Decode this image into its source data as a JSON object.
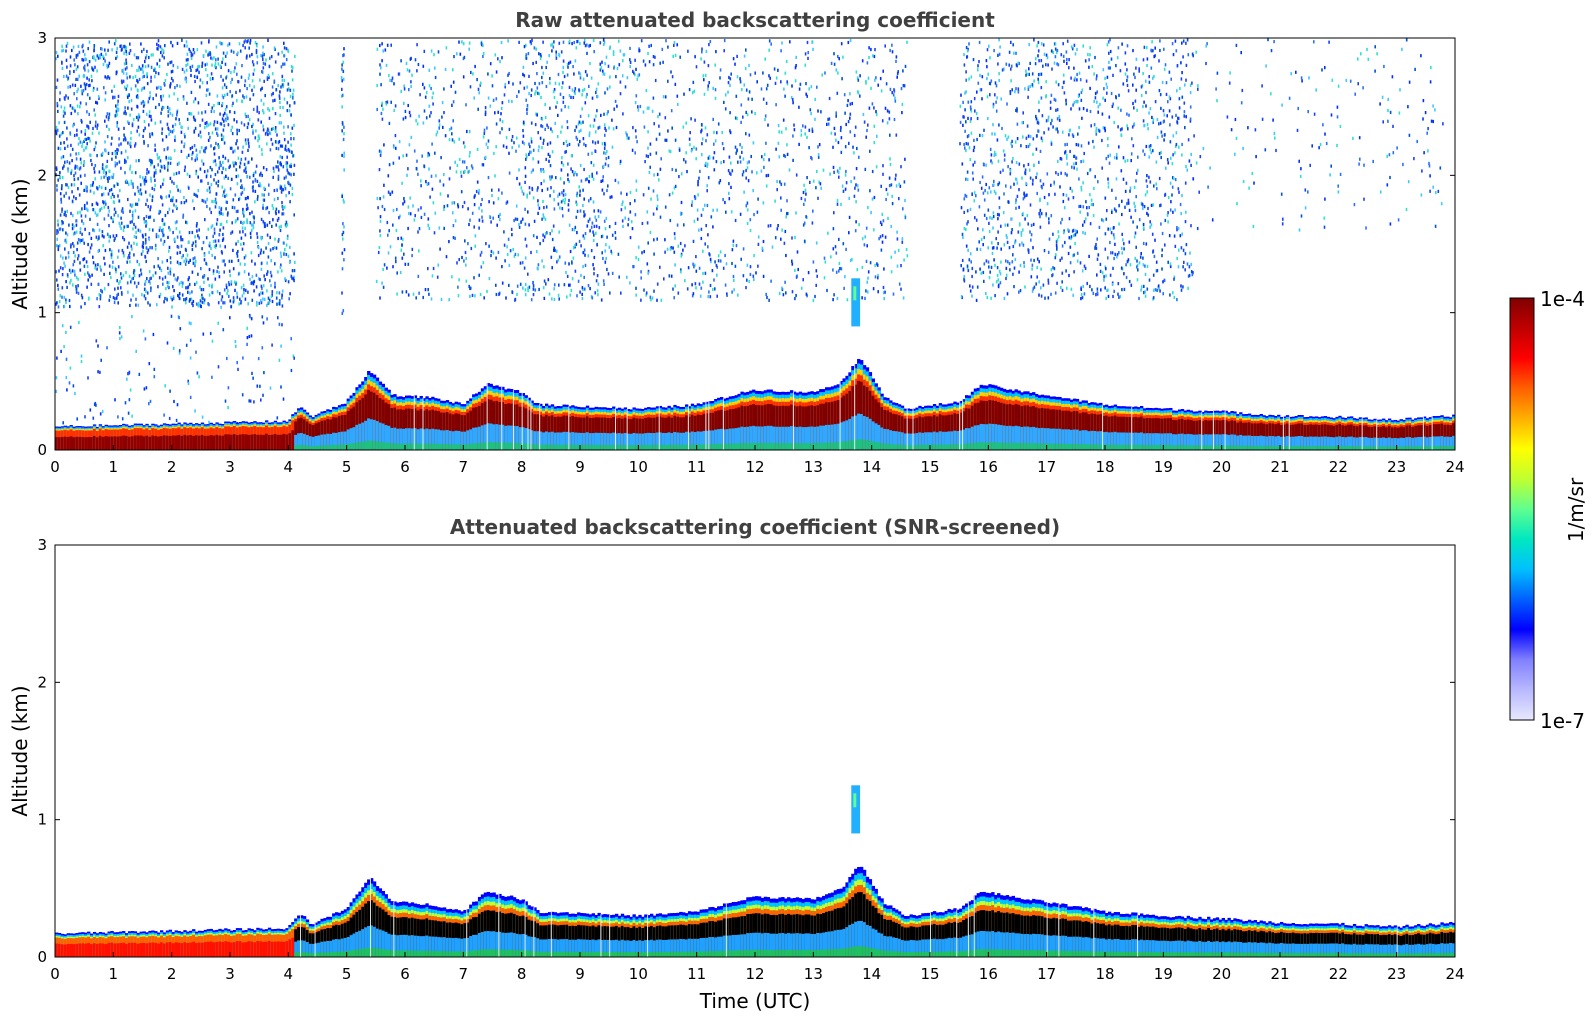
{
  "chart_data": [
    {
      "type": "heatmap",
      "title": "Raw attenuated backscattering coefficient",
      "xlabel": "",
      "ylabel": "Altitude (km)",
      "xlim": [
        0,
        24
      ],
      "ylim": [
        0,
        3
      ],
      "x_ticks": [
        "0",
        "1",
        "2",
        "3",
        "4",
        "5",
        "6",
        "7",
        "8",
        "9",
        "10",
        "11",
        "12",
        "13",
        "14",
        "15",
        "16",
        "17",
        "18",
        "19",
        "20",
        "21",
        "22",
        "23",
        "24"
      ],
      "y_ticks": [
        "0",
        "1",
        "2",
        "3"
      ],
      "screened": false,
      "boundary_layer_top_km": [
        [
          0,
          0.17
        ],
        [
          1,
          0.18
        ],
        [
          2,
          0.19
        ],
        [
          3,
          0.2
        ],
        [
          4,
          0.21
        ],
        [
          4.2,
          0.32
        ],
        [
          4.4,
          0.24
        ],
        [
          5,
          0.35
        ],
        [
          5.4,
          0.58
        ],
        [
          5.8,
          0.4
        ],
        [
          6.5,
          0.38
        ],
        [
          7,
          0.33
        ],
        [
          7.4,
          0.48
        ],
        [
          8,
          0.42
        ],
        [
          8.3,
          0.33
        ],
        [
          9,
          0.32
        ],
        [
          10,
          0.3
        ],
        [
          11,
          0.33
        ],
        [
          12,
          0.44
        ],
        [
          13,
          0.42
        ],
        [
          13.5,
          0.5
        ],
        [
          13.8,
          0.68
        ],
        [
          14.2,
          0.4
        ],
        [
          14.6,
          0.3
        ],
        [
          15.5,
          0.35
        ],
        [
          15.9,
          0.48
        ],
        [
          16.5,
          0.43
        ],
        [
          17,
          0.4
        ],
        [
          18,
          0.33
        ],
        [
          19,
          0.3
        ],
        [
          20,
          0.28
        ],
        [
          21,
          0.25
        ],
        [
          22,
          0.24
        ],
        [
          23,
          0.22
        ],
        [
          24,
          0.25
        ]
      ],
      "elevated_feature": {
        "time_utc": [
          13.65,
          13.8
        ],
        "altitude_km": [
          0.9,
          1.25
        ]
      }
    },
    {
      "type": "heatmap",
      "title": "Attenuated backscattering coefficient (SNR-screened)",
      "xlabel": "Time (UTC)",
      "ylabel": "Altitude (km)",
      "xlim": [
        0,
        24
      ],
      "ylim": [
        0,
        3
      ],
      "x_ticks": [
        "0",
        "1",
        "2",
        "3",
        "4",
        "5",
        "6",
        "7",
        "8",
        "9",
        "10",
        "11",
        "12",
        "13",
        "14",
        "15",
        "16",
        "17",
        "18",
        "19",
        "20",
        "21",
        "22",
        "23",
        "24"
      ],
      "y_ticks": [
        "0",
        "1",
        "2",
        "3"
      ],
      "screened": true,
      "boundary_layer_top_km": [
        [
          0,
          0.17
        ],
        [
          1,
          0.18
        ],
        [
          2,
          0.19
        ],
        [
          3,
          0.2
        ],
        [
          4,
          0.21
        ],
        [
          4.2,
          0.32
        ],
        [
          4.4,
          0.24
        ],
        [
          5,
          0.35
        ],
        [
          5.4,
          0.58
        ],
        [
          5.8,
          0.4
        ],
        [
          6.5,
          0.38
        ],
        [
          7,
          0.33
        ],
        [
          7.4,
          0.48
        ],
        [
          8,
          0.42
        ],
        [
          8.3,
          0.33
        ],
        [
          9,
          0.32
        ],
        [
          10,
          0.3
        ],
        [
          11,
          0.33
        ],
        [
          12,
          0.44
        ],
        [
          13,
          0.42
        ],
        [
          13.5,
          0.5
        ],
        [
          13.8,
          0.68
        ],
        [
          14.2,
          0.4
        ],
        [
          14.6,
          0.3
        ],
        [
          15.5,
          0.35
        ],
        [
          15.9,
          0.48
        ],
        [
          16.5,
          0.43
        ],
        [
          17,
          0.4
        ],
        [
          18,
          0.33
        ],
        [
          19,
          0.3
        ],
        [
          20,
          0.28
        ],
        [
          21,
          0.25
        ],
        [
          22,
          0.24
        ],
        [
          23,
          0.22
        ],
        [
          24,
          0.25
        ]
      ],
      "elevated_feature": {
        "time_utc": [
          13.65,
          13.8
        ],
        "altitude_km": [
          0.9,
          1.25
        ]
      }
    }
  ],
  "colorbar": {
    "min_label": "1e-7",
    "max_label": "1e-4",
    "units_label": "1/m/sr",
    "colors": [
      "#e8e8ff",
      "#b8b8ff",
      "#8080ff",
      "#0000ff",
      "#0060ff",
      "#00c0ff",
      "#00e8c0",
      "#60ff90",
      "#c0ff30",
      "#ffff00",
      "#ffb000",
      "#ff6000",
      "#ff0000",
      "#c00000",
      "#800000"
    ]
  }
}
